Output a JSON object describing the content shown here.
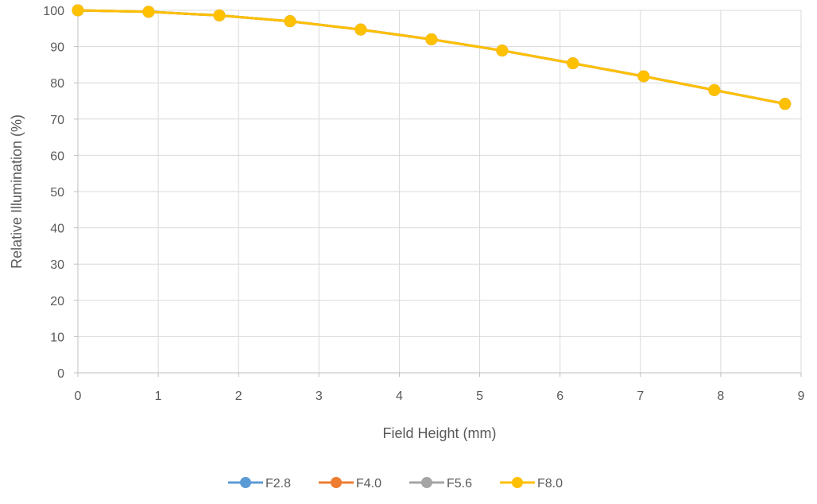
{
  "chart_data": {
    "type": "line",
    "title": "",
    "xlabel": "Field Height (mm)",
    "ylabel": "Relative Illumination (%)",
    "xlim": [
      0,
      9
    ],
    "ylim": [
      0,
      100
    ],
    "xticks": [
      "0",
      "1",
      "2",
      "3",
      "4",
      "5",
      "6",
      "7",
      "8",
      "9"
    ],
    "yticks": [
      "0",
      "10",
      "20",
      "30",
      "40",
      "50",
      "60",
      "70",
      "80",
      "90",
      "100"
    ],
    "grid": true,
    "legend_position": "bottom",
    "x": [
      0,
      0.88,
      1.76,
      2.64,
      3.52,
      4.4,
      5.28,
      6.16,
      7.04,
      7.92,
      8.8
    ],
    "series": [
      {
        "name": "F2.8",
        "color": "#5B9BD5",
        "values": [
          100,
          99.6,
          98.6,
          97,
          94.7,
          92,
          88.9,
          85.4,
          81.8,
          78,
          74.2
        ]
      },
      {
        "name": "F4.0",
        "color": "#ED7D31",
        "values": [
          100,
          99.6,
          98.6,
          97,
          94.7,
          92,
          88.9,
          85.4,
          81.8,
          78,
          74.2
        ]
      },
      {
        "name": "F5.6",
        "color": "#A5A5A5",
        "values": [
          100,
          99.6,
          98.6,
          97,
          94.7,
          92,
          88.9,
          85.4,
          81.8,
          78,
          74.2
        ]
      },
      {
        "name": "F8.0",
        "color": "#FFC000",
        "values": [
          100,
          99.6,
          98.6,
          97,
          94.7,
          92,
          88.9,
          85.4,
          81.8,
          78,
          74.2
        ]
      }
    ]
  }
}
